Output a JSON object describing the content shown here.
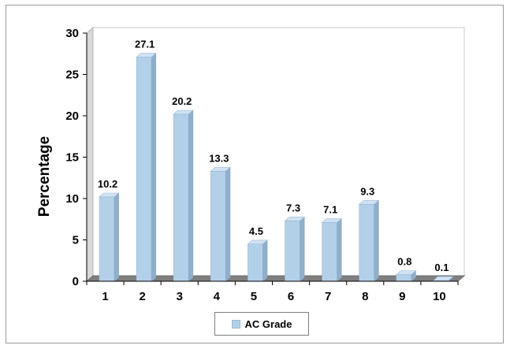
{
  "chart_data": {
    "type": "bar",
    "categories": [
      "1",
      "2",
      "3",
      "4",
      "5",
      "6",
      "7",
      "8",
      "9",
      "10"
    ],
    "series": [
      {
        "name": "AC Grade",
        "values": [
          10.2,
          27.1,
          20.2,
          13.3,
          4.5,
          7.3,
          7.1,
          9.3,
          0.8,
          0.1
        ]
      }
    ],
    "data_labels": [
      "10.2",
      "27.1",
      "20.2",
      "13.3",
      "4.5",
      "7.3",
      "7.1",
      "9.3",
      "0.8",
      "0.1"
    ],
    "ylabel": "Percentage",
    "ylim": [
      0,
      30
    ],
    "yticks": [
      "0",
      "5",
      "10",
      "15",
      "20",
      "25",
      "30"
    ],
    "legend_position": "bottom",
    "bar_color": "#b3d0e9",
    "bar_side_color": "#8fb0cc",
    "floor_color": "#7f7f7f"
  }
}
